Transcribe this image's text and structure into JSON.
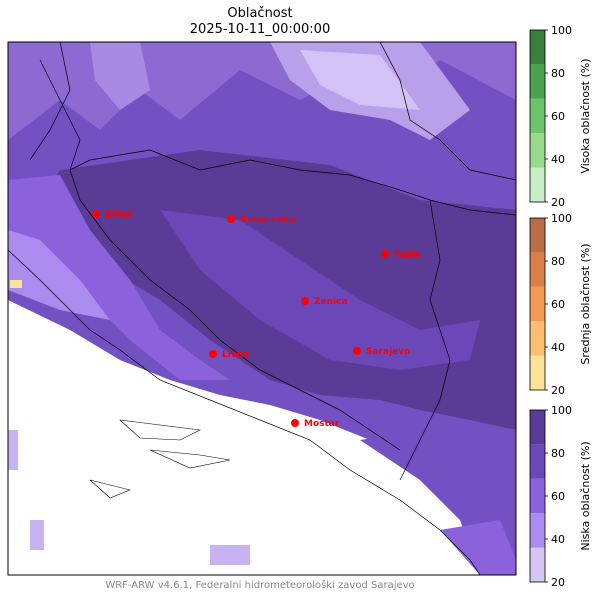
{
  "title": "Oblačnost",
  "subtitle": "2025-10-11_00:00:00",
  "footer": "WRF-ARW v4.6.1, Federalni hidrometeorološki zavod Sarajevo",
  "cities": [
    {
      "name": "Bihać"
    },
    {
      "name": "Banja Luka"
    },
    {
      "name": "Tuzla"
    },
    {
      "name": "Zenica"
    },
    {
      "name": "Livno"
    },
    {
      "name": "Sarajevo"
    },
    {
      "name": "Mostar"
    }
  ],
  "city_color": "#ff0000",
  "colorbars": [
    {
      "label": "Visoka oblačnost (%)",
      "ticks": [
        "100",
        "80",
        "60",
        "40",
        "20"
      ],
      "colors": [
        "#c7efc3",
        "#98d98e",
        "#6bc46a",
        "#4aa34f",
        "#3b7f3f"
      ]
    },
    {
      "label": "Srednja oblačnost (%)",
      "ticks": [
        "100",
        "80",
        "60",
        "40",
        "20"
      ],
      "colors": [
        "#fde29a",
        "#fbbf70",
        "#f39a53",
        "#da7f4a",
        "#b86f45"
      ]
    },
    {
      "label": "Niska oblačnost (%)",
      "ticks": [
        "100",
        "80",
        "60",
        "40",
        "20"
      ],
      "colors": [
        "#d5c5f5",
        "#ab8cee",
        "#8c62dc",
        "#6c47b7",
        "#5a3b96"
      ]
    }
  ]
}
